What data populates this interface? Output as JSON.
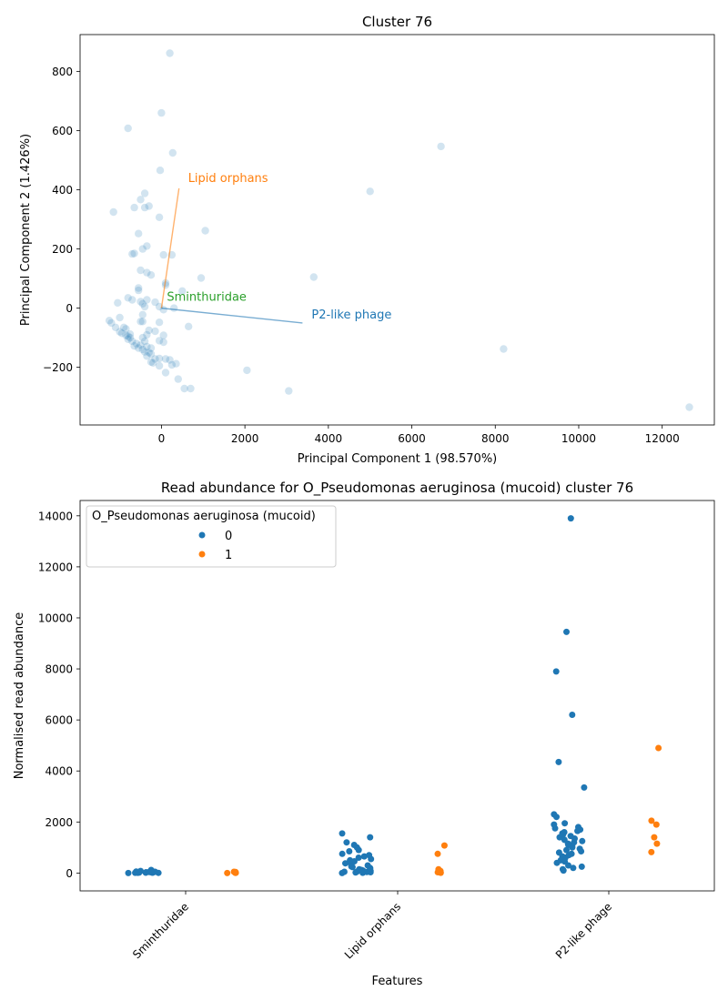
{
  "chart_data": [
    {
      "type": "scatter",
      "title": "Cluster 76",
      "xlabel": "Principal Component 1 (98.570%)",
      "ylabel": "Principal Component 2 (1.426%)",
      "xlim": [
        -1950,
        13250
      ],
      "ylim": [
        -395,
        925
      ],
      "xticks": [
        0,
        2000,
        4000,
        6000,
        8000,
        10000,
        12000
      ],
      "yticks": [
        -200,
        0,
        200,
        400,
        600,
        800
      ],
      "grid": false,
      "point_color": "#1f77b4",
      "points": [
        [
          200,
          862
        ],
        [
          0,
          660
        ],
        [
          -800,
          608
        ],
        [
          270,
          525
        ],
        [
          -30,
          466
        ],
        [
          6700,
          547
        ],
        [
          5000,
          395
        ],
        [
          -400,
          388
        ],
        [
          -1150,
          325
        ],
        [
          -650,
          340
        ],
        [
          -400,
          340
        ],
        [
          -300,
          345
        ],
        [
          -500,
          367
        ],
        [
          -50,
          307
        ],
        [
          1050,
          262
        ],
        [
          -550,
          252
        ],
        [
          -350,
          210
        ],
        [
          -450,
          200
        ],
        [
          50,
          180
        ],
        [
          250,
          180
        ],
        [
          -650,
          185
        ],
        [
          -700,
          183
        ],
        [
          -500,
          128
        ],
        [
          -350,
          120
        ],
        [
          -250,
          112
        ],
        [
          950,
          102
        ],
        [
          3650,
          105
        ],
        [
          100,
          85
        ],
        [
          100,
          78
        ],
        [
          -550,
          68
        ],
        [
          -550,
          60
        ],
        [
          500,
          58
        ],
        [
          -800,
          35
        ],
        [
          -700,
          28
        ],
        [
          -350,
          28
        ],
        [
          -500,
          22
        ],
        [
          -150,
          20
        ],
        [
          -1050,
          18
        ],
        [
          -450,
          15
        ],
        [
          -400,
          5
        ],
        [
          -50,
          5
        ],
        [
          300,
          0
        ],
        [
          50,
          -5
        ],
        [
          -450,
          -22
        ],
        [
          -1250,
          -42
        ],
        [
          -1200,
          -50
        ],
        [
          -1000,
          -32
        ],
        [
          -500,
          -45
        ],
        [
          -450,
          -45
        ],
        [
          -50,
          -48
        ],
        [
          -1100,
          -65
        ],
        [
          650,
          -62
        ],
        [
          -900,
          -65
        ],
        [
          -850,
          -70
        ],
        [
          -300,
          -75
        ],
        [
          -150,
          -78
        ],
        [
          -1000,
          -80
        ],
        [
          -950,
          -85
        ],
        [
          -750,
          -88
        ],
        [
          -350,
          -90
        ],
        [
          -850,
          -92
        ],
        [
          -800,
          -95
        ],
        [
          -750,
          -100
        ],
        [
          -450,
          -100
        ],
        [
          -800,
          -105
        ],
        [
          50,
          -92
        ],
        [
          -700,
          -112
        ],
        [
          -400,
          -112
        ],
        [
          -50,
          -110
        ],
        [
          50,
          -115
        ],
        [
          -600,
          -120
        ],
        [
          -500,
          -125
        ],
        [
          -650,
          -128
        ],
        [
          -350,
          -130
        ],
        [
          -550,
          -135
        ],
        [
          -250,
          -135
        ],
        [
          -450,
          -140
        ],
        [
          -400,
          -148
        ],
        [
          -300,
          -150
        ],
        [
          -250,
          -155
        ],
        [
          -350,
          -162
        ],
        [
          -150,
          -172
        ],
        [
          -50,
          -170
        ],
        [
          100,
          -172
        ],
        [
          200,
          -175
        ],
        [
          -250,
          -182
        ],
        [
          -200,
          -185
        ],
        [
          350,
          -188
        ],
        [
          -50,
          -195
        ],
        [
          250,
          -192
        ],
        [
          100,
          -218
        ],
        [
          400,
          -240
        ],
        [
          550,
          -272
        ],
        [
          700,
          -272
        ],
        [
          2050,
          -210
        ],
        [
          3050,
          -280
        ],
        [
          8200,
          -138
        ],
        [
          12650,
          -335
        ]
      ],
      "loadings": [
        {
          "name": "Lipid orphans",
          "x": 420,
          "y": 405,
          "color": "#ff7f0e"
        },
        {
          "name": "P2-like phage",
          "x": 3380,
          "y": -50,
          "color": "#1f77b4"
        },
        {
          "name": "Sminthuridae",
          "x": 0,
          "y": 0,
          "color": "#2ca02c"
        }
      ]
    },
    {
      "type": "strip",
      "title": "Read abundance for O_Pseudomonas aeruginosa (mucoid) cluster 76",
      "xlabel": "Features",
      "ylabel": "Normalised read abundance",
      "categories": [
        "Sminthuridae",
        "Lipid orphans",
        "P2-like phage"
      ],
      "ylim": [
        -700,
        14600
      ],
      "yticks": [
        0,
        2000,
        4000,
        6000,
        8000,
        10000,
        12000,
        14000
      ],
      "grid": false,
      "legend": {
        "title": "O_Pseudomonas aeruginosa (mucoid)",
        "placement": "upper-left"
      },
      "series": [
        {
          "name": "0",
          "color": "#1f77b4",
          "values": [
            [
              0,
              5,
              8,
              10,
              12,
              15,
              18,
              20,
              25,
              30,
              35,
              40,
              50,
              60,
              80,
              100,
              120
            ],
            [
              0,
              10,
              20,
              30,
              40,
              50,
              60,
              80,
              100,
              120,
              150,
              180,
              200,
              230,
              260,
              300,
              340,
              380,
              420,
              460,
              500,
              550,
              600,
              650,
              700,
              750,
              850,
              900,
              1000,
              1100,
              1200,
              1400,
              1550
            ],
            [
              100,
              150,
              200,
              250,
              300,
              400,
              450,
              500,
              550,
              600,
              650,
              700,
              750,
              800,
              850,
              900,
              950,
              1000,
              1050,
              1100,
              1150,
              1200,
              1250,
              1300,
              1350,
              1400,
              1450,
              1500,
              1550,
              1600,
              1650,
              1700,
              1750,
              1800,
              1900,
              1950,
              2200,
              2300,
              3350,
              4350,
              6200,
              7900,
              9450,
              13900
            ]
          ]
        },
        {
          "name": "1",
          "color": "#ff7f0e",
          "values": [
            [
              0,
              5,
              10,
              20,
              30,
              40,
              50
            ],
            [
              10,
              30,
              80,
              150,
              750,
              1080
            ],
            [
              820,
              1150,
              1400,
              1900,
              2050,
              4900
            ]
          ]
        }
      ]
    }
  ]
}
